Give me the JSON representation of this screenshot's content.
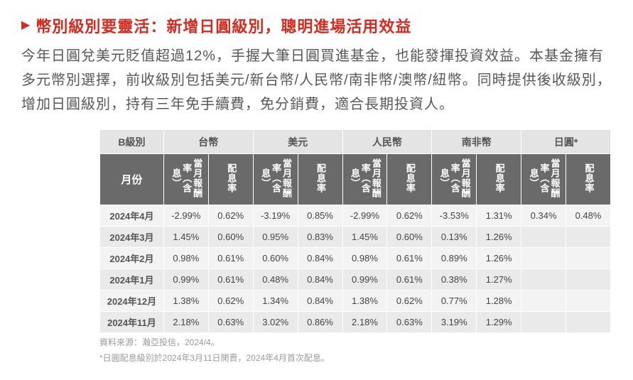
{
  "heading": "幣別級別要靈活：新增日圓級別，聰明進場活用效益",
  "body": "今年日圓兌美元貶值超過12%，手握大筆日圓買進基金，也能發揮投資效益。本基金擁有多元幣別選擇，前收級別包括美元/新台幣/人民幣/南非幣/澳幣/紐幣。同時提供後收級別，增加日圓級別，持有三年免手續費，免分銷費，適合長期投資人。",
  "table": {
    "top_left": "B級別",
    "currencies": [
      "台幣",
      "美元",
      "人民幣",
      "南非幣",
      "日圓*"
    ],
    "month_label": "月份",
    "sub_a": "當月報酬率（含息）",
    "sub_b": "配息率",
    "rows": [
      {
        "m": "2024年4月",
        "v": [
          "-2.99%",
          "0.62%",
          "-3.19%",
          "0.85%",
          "-2.99%",
          "0.62%",
          "-3.53%",
          "1.31%",
          "0.34%",
          "0.48%"
        ]
      },
      {
        "m": "2024年3月",
        "v": [
          "1.45%",
          "0.60%",
          "0.95%",
          "0.83%",
          "1.45%",
          "0.60%",
          "0.13%",
          "1.26%",
          "",
          ""
        ]
      },
      {
        "m": "2024年2月",
        "v": [
          "0.98%",
          "0.61%",
          "0.60%",
          "0.84%",
          "0.98%",
          "0.61%",
          "0.89%",
          "1.26%",
          "",
          ""
        ]
      },
      {
        "m": "2024年1月",
        "v": [
          "0.99%",
          "0.61%",
          "0.48%",
          "0.84%",
          "0.99%",
          "0.61%",
          "0.38%",
          "1.27%",
          "",
          ""
        ]
      },
      {
        "m": "2024年12月",
        "v": [
          "1.38%",
          "0.62%",
          "1.34%",
          "0.84%",
          "1.38%",
          "0.62%",
          "0.77%",
          "1.28%",
          "",
          ""
        ]
      },
      {
        "m": "2024年11月",
        "v": [
          "2.18%",
          "0.63%",
          "3.02%",
          "0.86%",
          "2.18%",
          "0.63%",
          "3.19%",
          "1.29%",
          "",
          ""
        ]
      }
    ]
  },
  "footnote1": "資料來源：瀚亞投信，2024/4。",
  "footnote2": "*日圓配息級別於2024年3月11日開賣，2024年4月首次配息。"
}
